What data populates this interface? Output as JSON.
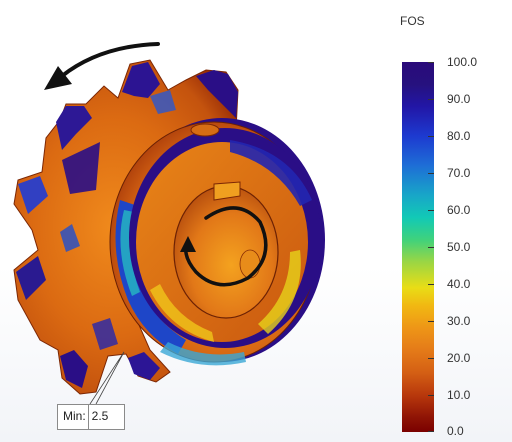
{
  "legend": {
    "title": "FOS",
    "ticks": [
      "100.0",
      "90.0",
      "80.0",
      "70.0",
      "60.0",
      "50.0",
      "40.0",
      "30.0",
      "20.0",
      "10.0",
      "0.0"
    ]
  },
  "min_marker": {
    "label": "Min:",
    "value": "2.5"
  },
  "colors": {
    "fos_low": "#7a0000",
    "fos_mid": "#e9dd16",
    "fos_high": "#2a0a7a",
    "part_body": "#e07a1a"
  },
  "icons": {
    "rotation_outer": "curved-arrow-counterclockwise-icon",
    "rotation_inner": "circular-arrow-icon"
  }
}
